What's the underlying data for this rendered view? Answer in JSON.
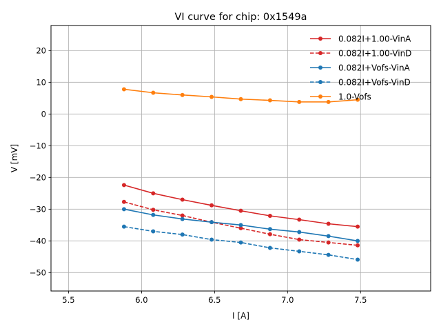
{
  "chart_data": {
    "type": "line",
    "title": "VI curve for chip: 0x1549a",
    "xlabel": "I [A]",
    "ylabel": "V [mV]",
    "xlim": [
      5.38,
      7.98
    ],
    "ylim": [
      -55.8,
      27.9
    ],
    "xticks": [
      5.5,
      6.0,
      6.5,
      7.0,
      7.5
    ],
    "xtick_labels": [
      "5.5",
      "6.0",
      "6.5",
      "7.0",
      "7.5"
    ],
    "yticks": [
      20,
      10,
      0,
      -10,
      -20,
      -30,
      -40,
      -50
    ],
    "ytick_labels": [
      "20",
      "10",
      "0",
      "−10",
      "−20",
      "−30",
      "−40",
      "−50"
    ],
    "grid": true,
    "legend_position": "top-right",
    "x": [
      5.88,
      6.08,
      6.28,
      6.48,
      6.68,
      6.88,
      7.08,
      7.28,
      7.48
    ],
    "series": [
      {
        "name": "0.082I+1.00-VinA",
        "color": "#d62728",
        "dash": "solid",
        "values": [
          -22.4,
          -25.0,
          -27.0,
          -28.8,
          -30.5,
          -32.1,
          -33.3,
          -34.6,
          -35.5
        ]
      },
      {
        "name": "0.082I+1.00-VinD",
        "color": "#d62728",
        "dash": "dashed",
        "values": [
          -27.7,
          -30.2,
          -32.0,
          -34.1,
          -36.0,
          -37.9,
          -39.6,
          -40.5,
          -41.4
        ]
      },
      {
        "name": "0.082I+Vofs-VinA",
        "color": "#1f77b4",
        "dash": "solid",
        "values": [
          -30.0,
          -31.8,
          -33.1,
          -34.1,
          -35.0,
          -36.3,
          -37.2,
          -38.5,
          -40.0
        ]
      },
      {
        "name": "0.082I+Vofs-VinD",
        "color": "#1f77b4",
        "dash": "dashed",
        "values": [
          -35.5,
          -37.0,
          -38.0,
          -39.6,
          -40.5,
          -42.2,
          -43.3,
          -44.4,
          -45.9
        ]
      },
      {
        "name": "1.0-Vofs",
        "color": "#ff7f0e",
        "dash": "solid",
        "values": [
          7.8,
          6.7,
          6.0,
          5.4,
          4.7,
          4.3,
          3.8,
          3.8,
          4.5
        ]
      }
    ]
  }
}
